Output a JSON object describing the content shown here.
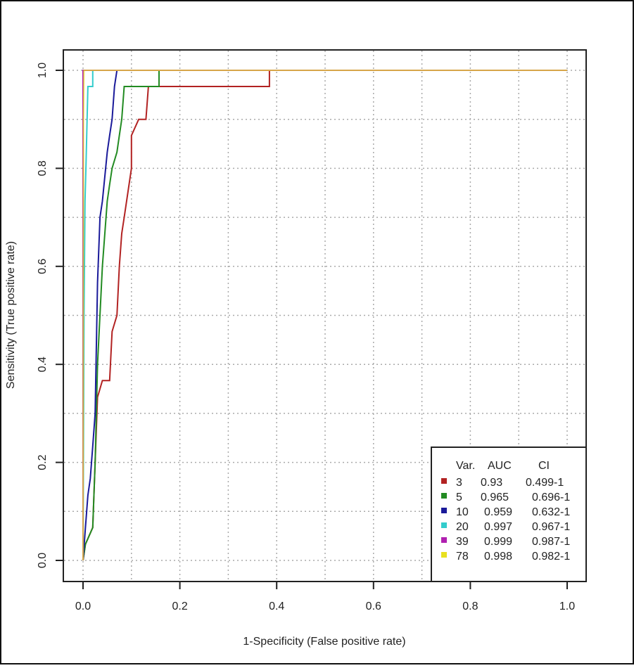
{
  "chart_data": {
    "type": "line",
    "title": "",
    "xlabel": "1-Specificity (False positive rate)",
    "ylabel": "Sensitivity (True positive rate)",
    "xlim": [
      0,
      1
    ],
    "ylim": [
      0,
      1
    ],
    "xticks": [
      "0.0",
      "0.2",
      "0.4",
      "0.6",
      "0.8",
      "1.0"
    ],
    "yticks": [
      "0.0",
      "0.2",
      "0.4",
      "0.6",
      "0.8",
      "1.0"
    ],
    "grid": true,
    "legend": {
      "placement": "bottom-right",
      "headers": [
        "Var.",
        "AUC",
        "CI"
      ],
      "rows": [
        {
          "var": "3",
          "auc": "0.93",
          "ci": "0.499-1",
          "color": "#b22222"
        },
        {
          "var": "5",
          "auc": "0.965",
          "ci": "0.696-1",
          "color": "#228b22"
        },
        {
          "var": "10",
          "auc": "0.959",
          "ci": "0.632-1",
          "color": "#1a1a9a"
        },
        {
          "var": "20",
          "auc": "0.997",
          "ci": "0.967-1",
          "color": "#33cccc"
        },
        {
          "var": "39",
          "auc": "0.999",
          "ci": "0.987-1",
          "color": "#b020b0"
        },
        {
          "var": "78",
          "auc": "0.998",
          "ci": "0.982-1",
          "color": "#e8e020"
        }
      ]
    },
    "series": [
      {
        "name": "3",
        "color": "#b22222",
        "points": [
          [
            0,
            0
          ],
          [
            0.005,
            0.033
          ],
          [
            0.02,
            0.067
          ],
          [
            0.025,
            0.2
          ],
          [
            0.03,
            0.333
          ],
          [
            0.04,
            0.367
          ],
          [
            0.055,
            0.367
          ],
          [
            0.06,
            0.467
          ],
          [
            0.07,
            0.5
          ],
          [
            0.075,
            0.6
          ],
          [
            0.08,
            0.667
          ],
          [
            0.085,
            0.7
          ],
          [
            0.09,
            0.733
          ],
          [
            0.1,
            0.8
          ],
          [
            0.1,
            0.867
          ],
          [
            0.115,
            0.9
          ],
          [
            0.13,
            0.9
          ],
          [
            0.135,
            0.967
          ],
          [
            0.385,
            0.967
          ],
          [
            0.385,
            1
          ],
          [
            1,
            1
          ]
        ]
      },
      {
        "name": "5",
        "color": "#228b22",
        "points": [
          [
            0,
            0
          ],
          [
            0.005,
            0.033
          ],
          [
            0.02,
            0.067
          ],
          [
            0.025,
            0.2
          ],
          [
            0.03,
            0.4
          ],
          [
            0.04,
            0.6
          ],
          [
            0.05,
            0.733
          ],
          [
            0.055,
            0.767
          ],
          [
            0.06,
            0.8
          ],
          [
            0.07,
            0.833
          ],
          [
            0.075,
            0.867
          ],
          [
            0.08,
            0.9
          ],
          [
            0.085,
            0.967
          ],
          [
            0.157,
            0.967
          ],
          [
            0.157,
            1
          ],
          [
            1,
            1
          ]
        ]
      },
      {
        "name": "10",
        "color": "#1a1a9a",
        "points": [
          [
            0,
            0
          ],
          [
            0.005,
            0.067
          ],
          [
            0.01,
            0.133
          ],
          [
            0.015,
            0.167
          ],
          [
            0.02,
            0.233
          ],
          [
            0.025,
            0.3
          ],
          [
            0.03,
            0.567
          ],
          [
            0.035,
            0.7
          ],
          [
            0.04,
            0.733
          ],
          [
            0.05,
            0.833
          ],
          [
            0.055,
            0.867
          ],
          [
            0.06,
            0.9
          ],
          [
            0.065,
            0.967
          ],
          [
            0.07,
            1
          ],
          [
            1,
            1
          ]
        ]
      },
      {
        "name": "20",
        "color": "#33cccc",
        "points": [
          [
            0,
            0
          ],
          [
            0.002,
            0.5
          ],
          [
            0.004,
            0.733
          ],
          [
            0.006,
            0.8
          ],
          [
            0.01,
            0.967
          ],
          [
            0.02,
            0.967
          ],
          [
            0.02,
            1
          ],
          [
            1,
            1
          ]
        ]
      },
      {
        "name": "39",
        "color": "#b020b0",
        "points": [
          [
            0,
            0
          ],
          [
            0,
            1
          ],
          [
            1,
            1
          ]
        ]
      },
      {
        "name": "78",
        "color": "#e8e020",
        "points": [
          [
            0,
            0
          ],
          [
            0.001,
            0.9
          ],
          [
            0.002,
            1
          ],
          [
            1,
            1
          ]
        ]
      }
    ]
  }
}
